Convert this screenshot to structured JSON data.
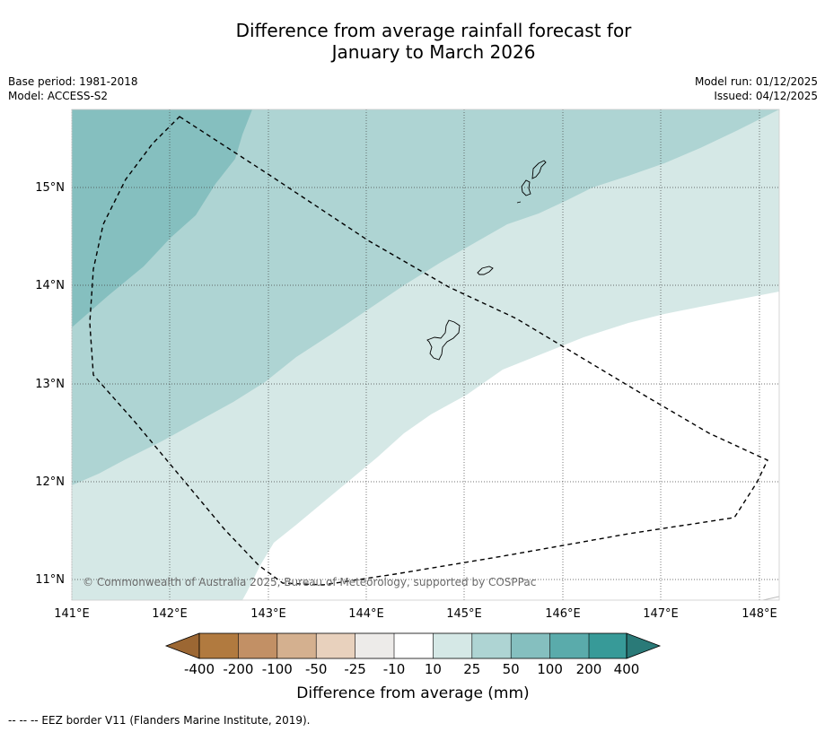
{
  "title": {
    "line1": "Difference from average rainfall forecast for",
    "line2": "January to March 2026"
  },
  "meta": {
    "base_period": "Base period: 1981-2018",
    "model": "Model: ACCESS-S2",
    "model_run": "Model run: 01/12/2025",
    "issued": "Issued: 04/12/2025"
  },
  "map": {
    "lon_labels": [
      "141°E",
      "142°E",
      "143°E",
      "144°E",
      "145°E",
      "146°E",
      "147°E",
      "148°E"
    ],
    "lat_labels": [
      "15°N",
      "14°N",
      "13°N",
      "12°N",
      "11°N"
    ],
    "copyright": "© Commonwealth of Australia 2025, Bureau of Meteorology, supported by COSPPac",
    "fill_colors": {
      "class_10_25": "#d5e8e6",
      "class_25_50": "#aed4d3",
      "class_50_100": "#85bfbf",
      "class_neutral": "#ffffff"
    }
  },
  "legend": {
    "tick_labels": [
      "-400",
      "-200",
      "-100",
      "-50",
      "-25",
      "-10",
      "10",
      "25",
      "50",
      "100",
      "200",
      "400"
    ],
    "colors": [
      "#9c6733",
      "#b17a3f",
      "#c29065",
      "#d4b08f",
      "#e8d1bd",
      "#edebe9",
      "#ffffff",
      "#d5e8e6",
      "#aed4d3",
      "#85bfbf",
      "#5aabab",
      "#379a98",
      "#2a7a78"
    ],
    "axis_label": "Difference from average (mm)"
  },
  "footnote": "--  --  -- EEZ border V11 (Flanders Marine Institute, 2019)."
}
